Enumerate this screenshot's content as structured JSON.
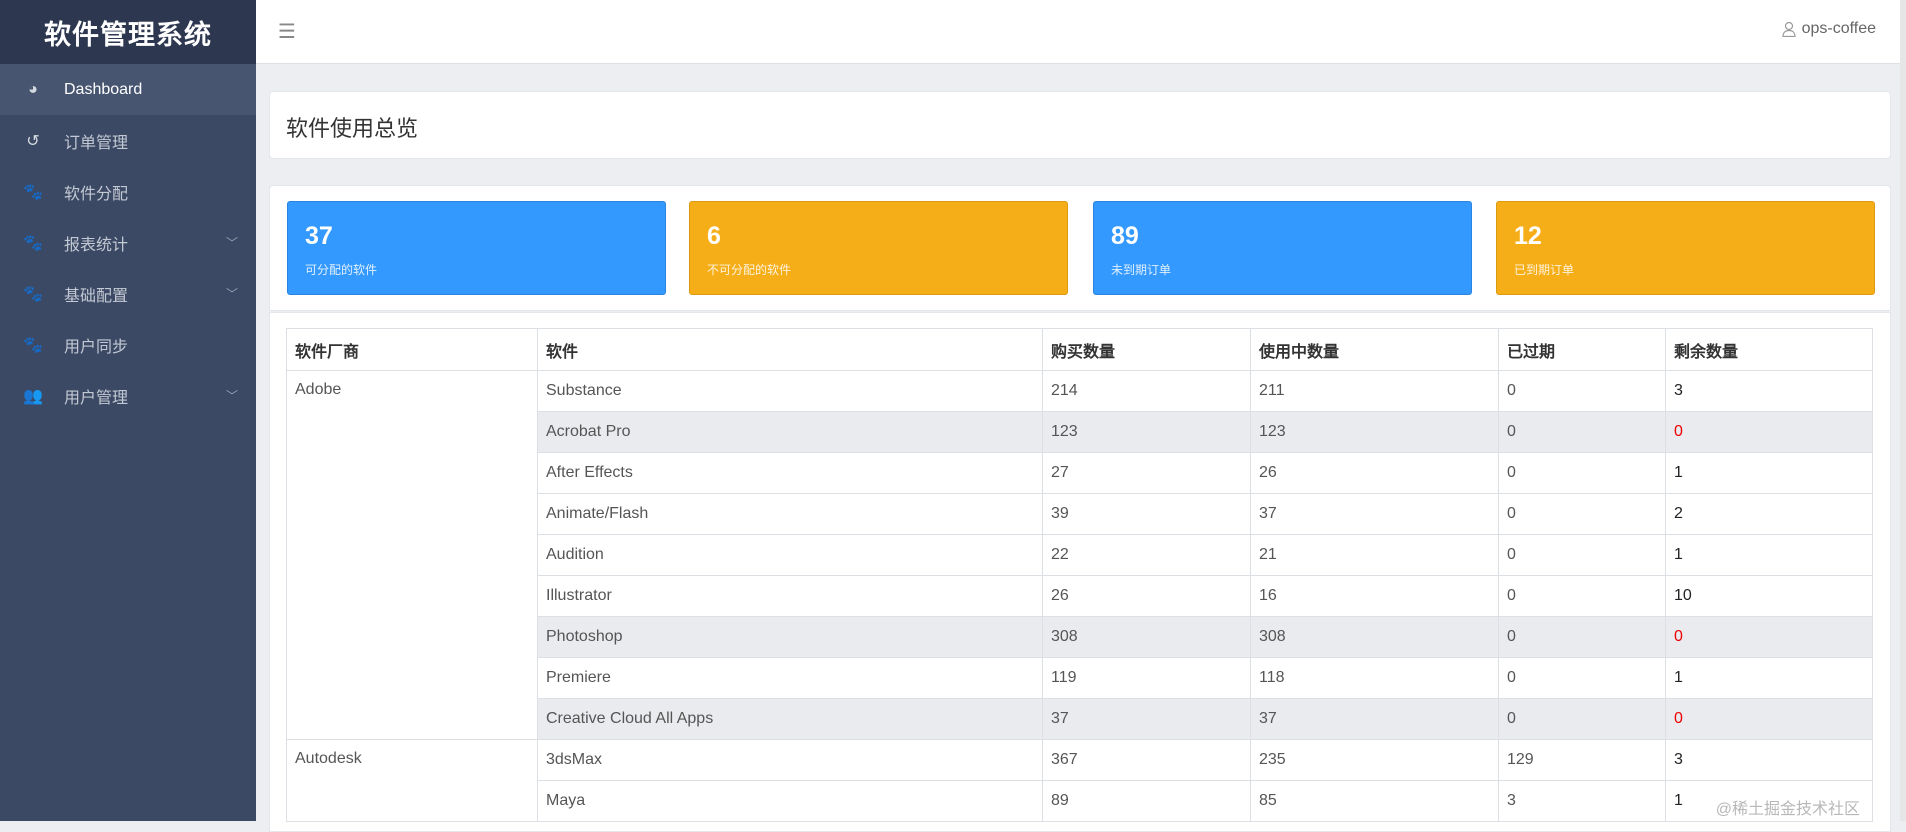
{
  "app": {
    "title": "软件管理系统"
  },
  "sidebar": {
    "items": [
      {
        "label": "Dashboard",
        "icon": "dashboard-icon",
        "active": true,
        "expandable": false
      },
      {
        "label": "订单管理",
        "icon": "history-icon",
        "expandable": false
      },
      {
        "label": "软件分配",
        "icon": "paw-icon",
        "expandable": false
      },
      {
        "label": "报表统计",
        "icon": "paw-icon",
        "expandable": true
      },
      {
        "label": "基础配置",
        "icon": "paw-icon",
        "expandable": true
      },
      {
        "label": "用户同步",
        "icon": "paw-icon",
        "expandable": false
      },
      {
        "label": "用户管理",
        "icon": "users-icon",
        "expandable": true
      }
    ]
  },
  "header": {
    "menu_icon": "hamburger-icon",
    "username": "ops-coffee"
  },
  "page": {
    "title": "软件使用总览"
  },
  "stats": [
    {
      "value": "37",
      "label": "可分配的软件",
      "color": "#3399ff"
    },
    {
      "value": "6",
      "label": "不可分配的软件",
      "color": "#f6ae18"
    },
    {
      "value": "89",
      "label": "未到期订单",
      "color": "#3399ff"
    },
    {
      "value": "12",
      "label": "已到期订单",
      "color": "#f6ae18"
    }
  ],
  "table": {
    "headers": [
      "软件厂商",
      "软件",
      "购买数量",
      "使用中数量",
      "已过期",
      "剩余数量"
    ],
    "groups": [
      {
        "vendor": "Adobe",
        "rows": [
          [
            "Substance",
            "214",
            "211",
            "0",
            "3"
          ],
          [
            "Acrobat Pro",
            "123",
            "123",
            "0",
            "0"
          ],
          [
            "After Effects",
            "27",
            "26",
            "0",
            "1"
          ],
          [
            "Animate/Flash",
            "39",
            "37",
            "0",
            "2"
          ],
          [
            "Audition",
            "22",
            "21",
            "0",
            "1"
          ],
          [
            "Illustrator",
            "26",
            "16",
            "0",
            "10"
          ],
          [
            "Photoshop",
            "308",
            "308",
            "0",
            "0"
          ],
          [
            "Premiere",
            "119",
            "118",
            "0",
            "1"
          ],
          [
            "Creative Cloud All Apps",
            "37",
            "37",
            "0",
            "0"
          ]
        ]
      },
      {
        "vendor": "Autodesk",
        "rows": [
          [
            "3dsMax",
            "367",
            "235",
            "129",
            "3"
          ],
          [
            "Maya",
            "89",
            "85",
            "3",
            "1"
          ]
        ]
      }
    ]
  },
  "colors": {
    "zero_remaining": "#ee0000",
    "sidebar": "#3c4964"
  },
  "watermark": "@稀土掘金技术社区"
}
